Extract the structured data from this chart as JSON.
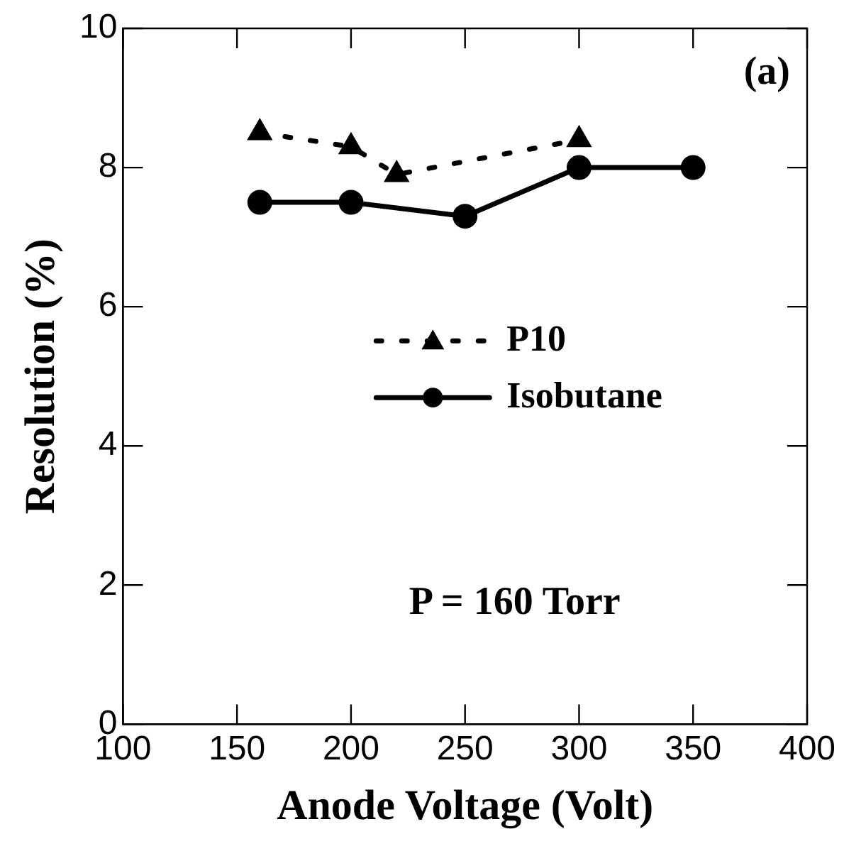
{
  "chart_data": {
    "type": "line",
    "xlabel": "Anode Voltage (Volt)",
    "ylabel": "Resolution (%)",
    "xlim": [
      100,
      400
    ],
    "xticks": [
      100,
      150,
      200,
      250,
      300,
      350,
      400
    ],
    "ylim": [
      0,
      10
    ],
    "yticks": [
      0,
      2,
      4,
      6,
      8,
      10
    ],
    "grid": false,
    "legend": "center",
    "annotations": [
      "(a)",
      "P = 160 Torr"
    ],
    "series": [
      {
        "name": "P10",
        "color": "#000000",
        "x": [
          160,
          200,
          220,
          300
        ],
        "values": [
          8.5,
          8.3,
          7.9,
          8.4
        ],
        "marker": "triangle",
        "line_style": "dotted"
      },
      {
        "name": "Isobutane",
        "color": "#000000",
        "x": [
          160,
          200,
          250,
          300,
          350
        ],
        "values": [
          7.5,
          7.5,
          7.3,
          8.0,
          8.0
        ],
        "marker": "circle",
        "line_style": "solid"
      }
    ]
  }
}
